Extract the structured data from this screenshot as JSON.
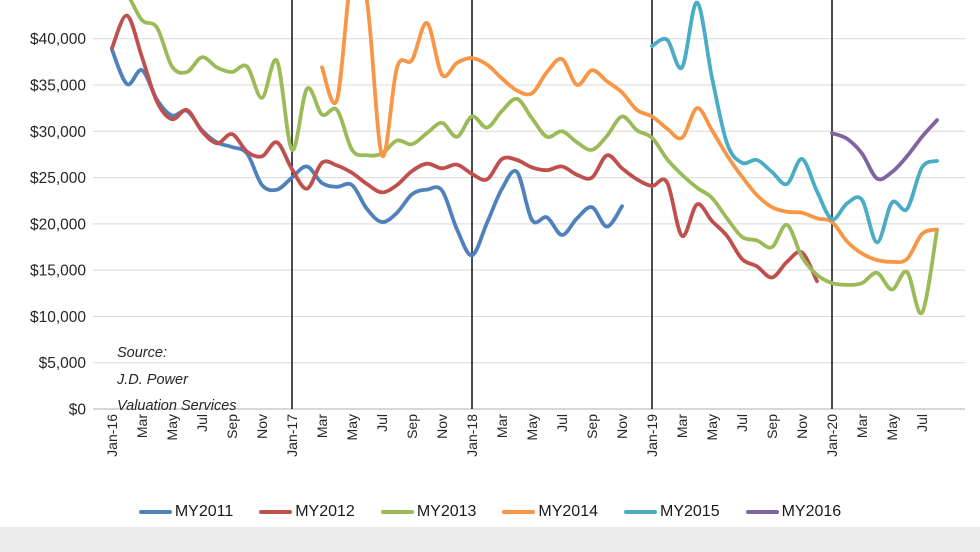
{
  "chart_data": {
    "type": "line",
    "title": "",
    "unit": "USD",
    "x_axis": {
      "months_start": "Jan-2016",
      "months_end": "Aug-2020",
      "tick_every_n_months": 2,
      "tick_labels": [
        "Jan-16",
        "Mar",
        "May",
        "Jul",
        "Sep",
        "Nov",
        "Jan-17",
        "Mar",
        "May",
        "Jul",
        "Sep",
        "Nov",
        "Jan-18",
        "Mar",
        "May",
        "Jul",
        "Sep",
        "Nov",
        "Jan-19",
        "Mar",
        "May",
        "Jul",
        "Sep",
        "Nov",
        "Jan-20",
        "Mar",
        "May",
        "Jul"
      ]
    },
    "y_axis": {
      "tick_labels": [
        "$0",
        "$5,000",
        "$10,000",
        "$15,000",
        "$20,000",
        "$25,000",
        "$30,000",
        "$35,000",
        "$40,000"
      ],
      "min": 0,
      "max": 40000,
      "step": 5000
    },
    "grid": true,
    "legend_position": "bottom",
    "year_separator_month_indices": [
      12,
      24,
      36,
      48
    ],
    "separator_color": "#000000",
    "gridline_color": "#d9d9d9",
    "axis_line_color": "#bfbfbf",
    "source_note": [
      "Source:",
      "J.D. Power",
      "Valuation Services"
    ],
    "series": [
      {
        "name": "MY2011",
        "color": "#4F81BD",
        "start_month_index": 0,
        "values": [
          38800,
          35100,
          36600,
          33400,
          31700,
          32200,
          30100,
          28800,
          28300,
          27600,
          24200,
          23700,
          25000,
          26200,
          24400,
          24000,
          24200,
          21600,
          20200,
          21200,
          23200,
          23700,
          23600,
          19400,
          16600,
          20100,
          23800,
          25600,
          20400,
          20700,
          18800,
          20600,
          21800,
          19700,
          21900
        ]
      },
      {
        "name": "MY2012",
        "color": "#C0504D",
        "start_month_index": 0,
        "values": [
          39000,
          42500,
          38000,
          33200,
          31300,
          32300,
          30000,
          28700,
          29700,
          27800,
          27300,
          28800,
          25900,
          23800,
          26600,
          26300,
          25500,
          24300,
          23400,
          24200,
          25700,
          26500,
          26000,
          26400,
          25400,
          24800,
          27000,
          26900,
          26100,
          25800,
          26200,
          25300,
          25000,
          27400,
          26000,
          24800,
          24100,
          24500,
          18700,
          22100,
          20300,
          18700,
          16200,
          15400,
          14200,
          15900,
          16900,
          13800
        ]
      },
      {
        "name": "MY2013",
        "color": "#9BBB59",
        "start_month_index": 0,
        "values": [
          46000,
          44800,
          42000,
          41200,
          37000,
          36400,
          38000,
          36900,
          36400,
          37000,
          33600,
          37600,
          28000,
          34600,
          31800,
          32300,
          28000,
          27400,
          27600,
          29000,
          28600,
          29800,
          30900,
          29400,
          31600,
          30400,
          32200,
          33500,
          31400,
          29400,
          30000,
          28800,
          28000,
          29500,
          31600,
          30100,
          29300,
          27000,
          25300,
          23900,
          22800,
          20600,
          18600,
          18200,
          17500,
          19900,
          16400,
          14500,
          13600,
          13400,
          13600,
          14700,
          12900,
          14800,
          10400,
          19300
        ]
      },
      {
        "name": "MY2014",
        "color": "#F79646",
        "start_month_index": 14,
        "values": [
          36900,
          33400,
          47000,
          44000,
          27400,
          36900,
          37700,
          41700,
          36100,
          37400,
          37900,
          37200,
          35700,
          34400,
          34100,
          36400,
          37800,
          35000,
          36600,
          35400,
          34200,
          32300,
          31600,
          30300,
          29300,
          32500,
          30100,
          27400,
          25100,
          23100,
          21800,
          21300,
          21200,
          20600,
          20200,
          18100,
          16800,
          16100,
          15900,
          16200,
          18900,
          19400
        ]
      },
      {
        "name": "MY2015",
        "color": "#4BACC6",
        "start_month_index": 36,
        "values": [
          39200,
          39900,
          36900,
          43900,
          35800,
          28700,
          26600,
          26900,
          25600,
          24300,
          27000,
          23500,
          20500,
          22200,
          22600,
          18000,
          22300,
          21600,
          26100,
          26800
        ]
      },
      {
        "name": "MY2016",
        "color": "#8064A2",
        "start_month_index": 48,
        "values": [
          29800,
          29200,
          27600,
          24900,
          25600,
          27300,
          29400,
          31200
        ]
      }
    ]
  }
}
